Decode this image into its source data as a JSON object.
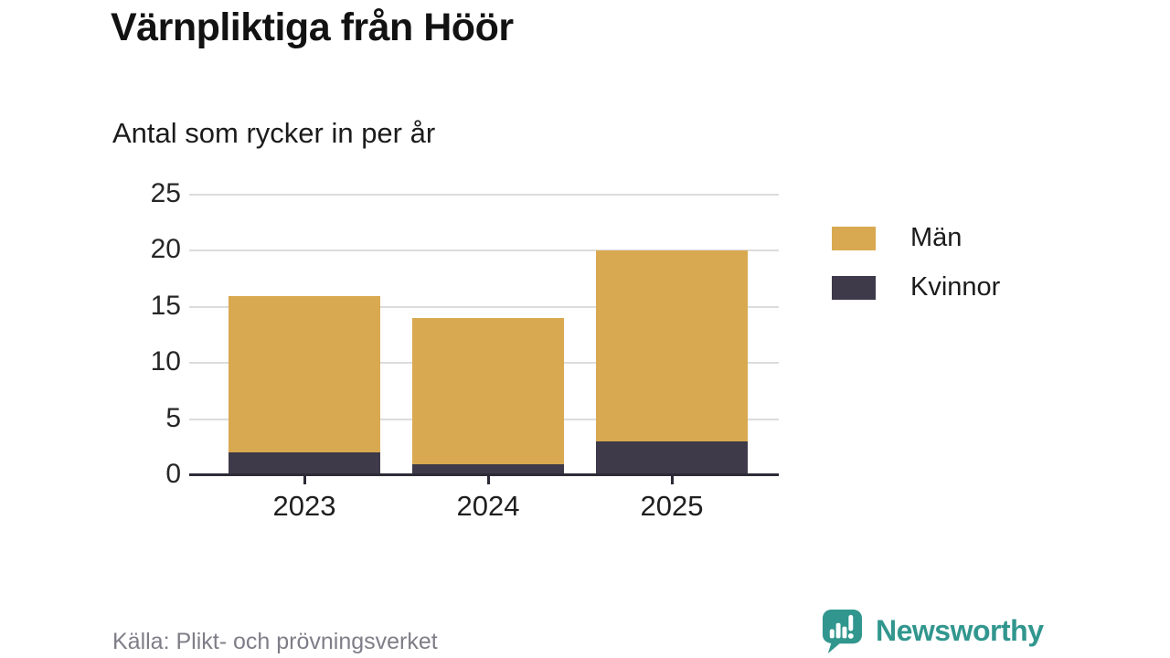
{
  "header": {
    "title": "Värnpliktiga från Höör",
    "subtitle": "Antal som rycker in per år"
  },
  "chart_data": {
    "type": "bar",
    "stacked": true,
    "title": "Värnpliktiga från Höör",
    "subtitle": "Antal som rycker in per år",
    "categories": [
      "2023",
      "2024",
      "2025"
    ],
    "series": [
      {
        "name": "Män",
        "color": "#D9A951",
        "values": [
          14,
          13,
          17
        ]
      },
      {
        "name": "Kvinnor",
        "color": "#3E3A4A",
        "values": [
          2,
          1,
          3
        ]
      }
    ],
    "stack_order": [
      "Kvinnor",
      "Män"
    ],
    "stacked_totals": [
      16,
      14,
      20
    ],
    "xlabel": "",
    "ylabel": "",
    "ylim": [
      0,
      25
    ],
    "yticks": [
      0,
      5,
      10,
      15,
      20,
      25
    ],
    "grid": true,
    "legend_position": "right"
  },
  "footer": {
    "source": "Källa: Plikt- och prövningsverket",
    "brand": "Newsworthy"
  },
  "colors": {
    "men": "#D9A951",
    "women": "#3E3A4A",
    "gridline": "#DCDCDC",
    "axis": "#2E2B38",
    "text_dark": "#1B1B1B",
    "text_gray": "#7F7D87",
    "brand_teal": "#31968E",
    "background": "#FFFFFF"
  }
}
